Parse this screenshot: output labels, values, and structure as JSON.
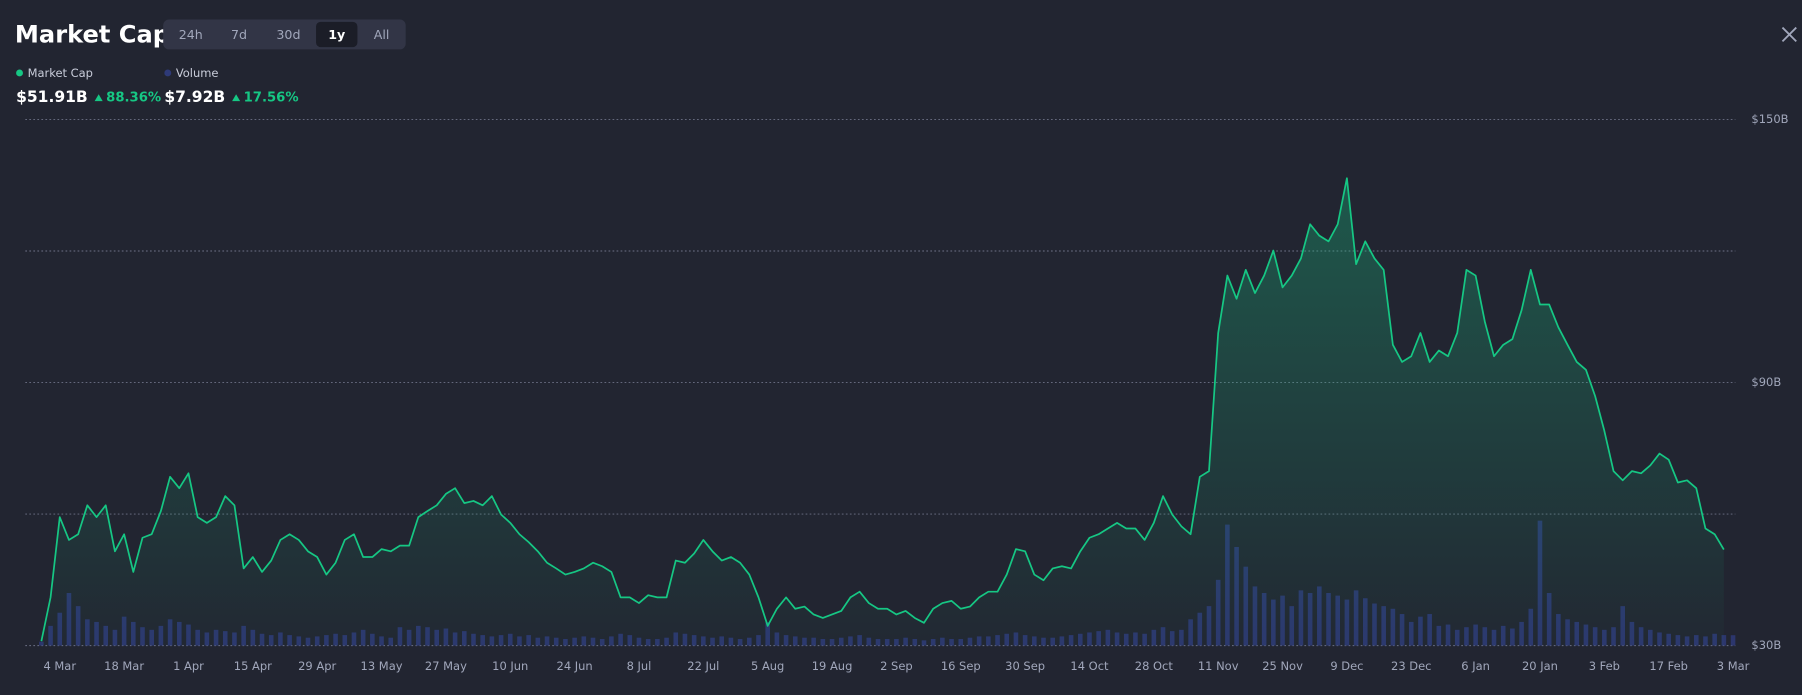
{
  "header": {
    "title": "Market Cap",
    "ranges": [
      "24h",
      "7d",
      "30d",
      "1y",
      "All"
    ],
    "active_range": "1y"
  },
  "chart_data": {
    "type": "line",
    "categories": [
      null,
      null,
      "4 Mar",
      null,
      null,
      null,
      null,
      null,
      null,
      "18 Mar",
      null,
      null,
      null,
      null,
      null,
      null,
      "1 Apr",
      null,
      null,
      null,
      null,
      null,
      null,
      "15 Apr",
      null,
      null,
      null,
      null,
      null,
      null,
      "29 Apr",
      null,
      null,
      null,
      null,
      null,
      null,
      "13 May",
      null,
      null,
      null,
      null,
      null,
      null,
      "27 May",
      null,
      null,
      null,
      null,
      null,
      null,
      "10 Jun",
      null,
      null,
      null,
      null,
      null,
      null,
      "24 Jun",
      null,
      null,
      null,
      null,
      null,
      null,
      "8 Jul",
      null,
      null,
      null,
      null,
      null,
      null,
      "22 Jul",
      null,
      null,
      null,
      null,
      null,
      null,
      "5 Aug",
      null,
      null,
      null,
      null,
      null,
      null,
      "19 Aug",
      null,
      null,
      null,
      null,
      null,
      null,
      "2 Sep",
      null,
      null,
      null,
      null,
      null,
      null,
      "16 Sep",
      null,
      null,
      null,
      null,
      null,
      null,
      "30 Sep",
      null,
      null,
      null,
      null,
      null,
      null,
      "14 Oct",
      null,
      null,
      null,
      null,
      null,
      null,
      "28 Oct",
      null,
      null,
      null,
      null,
      null,
      null,
      "11 Nov",
      null,
      null,
      null,
      null,
      null,
      null,
      "25 Nov",
      null,
      null,
      null,
      null,
      null,
      null,
      "9 Dec",
      null,
      null,
      null,
      null,
      null,
      null,
      "23 Dec",
      null,
      null,
      null,
      null,
      null,
      null,
      "6 Jan",
      null,
      null,
      null,
      null,
      null,
      null,
      "20 Jan",
      null,
      null,
      null,
      null,
      null,
      null,
      "3 Feb",
      null,
      null,
      null,
      null,
      null,
      null,
      "17 Feb",
      null,
      null,
      null,
      null,
      null,
      null,
      "3 Mar"
    ],
    "series": [
      {
        "name": "Market Cap",
        "color": "#16c784",
        "value_label": "$51.91B",
        "change_label": "88.36%",
        "values": [
          31.0,
          41.0,
          59.3,
          54.1,
          55.4,
          62.0,
          59.3,
          62.0,
          51.5,
          55.4,
          46.8,
          54.6,
          55.4,
          60.7,
          68.5,
          65.9,
          69.3,
          59.3,
          58.0,
          59.3,
          64.1,
          62.0,
          47.6,
          50.2,
          46.8,
          49.4,
          54.1,
          55.4,
          54.1,
          51.5,
          50.2,
          46.2,
          48.9,
          54.1,
          55.4,
          50.2,
          50.2,
          52.0,
          51.5,
          52.8,
          52.8,
          59.3,
          60.7,
          62.0,
          64.6,
          65.9,
          62.5,
          63.0,
          62.0,
          64.1,
          59.9,
          58.0,
          55.4,
          53.6,
          51.5,
          48.9,
          47.6,
          46.2,
          46.8,
          47.6,
          48.9,
          48.1,
          46.8,
          41.0,
          41.0,
          39.7,
          41.5,
          41.0,
          41.0,
          49.4,
          48.9,
          51.0,
          54.1,
          51.5,
          49.4,
          50.2,
          48.9,
          46.2,
          41.0,
          34.5,
          38.4,
          41.0,
          38.4,
          38.9,
          37.1,
          36.3,
          37.1,
          37.9,
          41.0,
          42.3,
          39.7,
          38.4,
          38.4,
          37.1,
          37.9,
          36.3,
          35.2,
          38.4,
          39.7,
          40.2,
          38.4,
          38.9,
          41.0,
          42.3,
          42.3,
          46.2,
          52.0,
          51.5,
          46.2,
          44.9,
          47.6,
          48.1,
          47.6,
          51.5,
          54.6,
          55.4,
          56.7,
          58.0,
          56.7,
          56.7,
          54.1,
          58.0,
          64.1,
          59.9,
          57.2,
          55.4,
          68.5,
          69.8,
          101.3,
          114.4,
          109.1,
          115.7,
          110.4,
          114.4,
          120.1,
          111.7,
          114.4,
          118.3,
          126.1,
          123.5,
          122.2,
          126.1,
          136.6,
          117.0,
          122.2,
          118.3,
          115.7,
          98.6,
          94.7,
          96.0,
          101.3,
          94.7,
          97.3,
          96.0,
          101.3,
          115.7,
          114.4,
          103.9,
          96.0,
          98.6,
          99.9,
          106.5,
          115.7,
          107.8,
          107.8,
          102.6,
          98.6,
          94.7,
          92.9,
          86.9,
          79.0,
          69.8,
          67.7,
          69.8,
          69.3,
          71.1,
          73.8,
          72.4,
          67.2,
          67.7,
          65.9,
          56.7,
          55.4,
          51.9,
          null
        ]
      },
      {
        "name": "Volume",
        "type": "bar",
        "axis": "y2",
        "color": "#2e3a78",
        "value_label": "$7.92B",
        "change_label": "17.56%",
        "values": [
          3,
          15,
          25,
          40,
          30,
          20,
          18,
          15,
          12,
          22,
          18,
          14,
          12,
          15,
          20,
          18,
          16,
          12,
          10,
          12,
          11,
          10,
          15,
          12,
          9,
          8,
          10,
          8,
          7,
          6,
          7,
          8,
          9,
          8,
          10,
          12,
          9,
          7,
          6,
          14,
          12,
          15,
          14,
          12,
          13,
          10,
          11,
          9,
          8,
          7,
          8,
          9,
          7,
          8,
          6,
          7,
          6,
          5,
          6,
          7,
          6,
          5,
          7,
          9,
          8,
          6,
          5,
          5,
          6,
          10,
          9,
          8,
          7,
          6,
          7,
          6,
          5,
          6,
          8,
          18,
          10,
          8,
          7,
          6,
          6,
          5,
          5,
          6,
          7,
          8,
          6,
          5,
          5,
          5,
          6,
          5,
          4,
          5,
          6,
          5,
          5,
          6,
          7,
          7,
          8,
          9,
          10,
          8,
          7,
          6,
          6,
          7,
          8,
          9,
          10,
          11,
          12,
          10,
          9,
          10,
          9,
          12,
          14,
          11,
          12,
          20,
          25,
          30,
          50,
          92,
          75,
          60,
          45,
          40,
          35,
          38,
          30,
          42,
          40,
          45,
          40,
          38,
          35,
          42,
          36,
          32,
          30,
          28,
          24,
          18,
          22,
          24,
          15,
          16,
          12,
          14,
          16,
          14,
          12,
          15,
          13,
          18,
          28,
          95,
          40,
          24,
          20,
          18,
          16,
          14,
          12,
          14,
          30,
          18,
          14,
          12,
          10,
          9,
          8,
          7,
          8,
          7,
          9,
          8,
          7.9
        ]
      }
    ],
    "ylim": [
      30,
      150
    ],
    "yticks": [
      {
        "value": 30,
        "label": "$30B"
      },
      {
        "value": 90,
        "label": "$90B"
      },
      {
        "value": 150,
        "label": "$150B"
      }
    ],
    "grid_lines": [
      30,
      60,
      90,
      120,
      150
    ],
    "y2lim": [
      0,
      400
    ],
    "grid": true,
    "legend": "top-left"
  }
}
